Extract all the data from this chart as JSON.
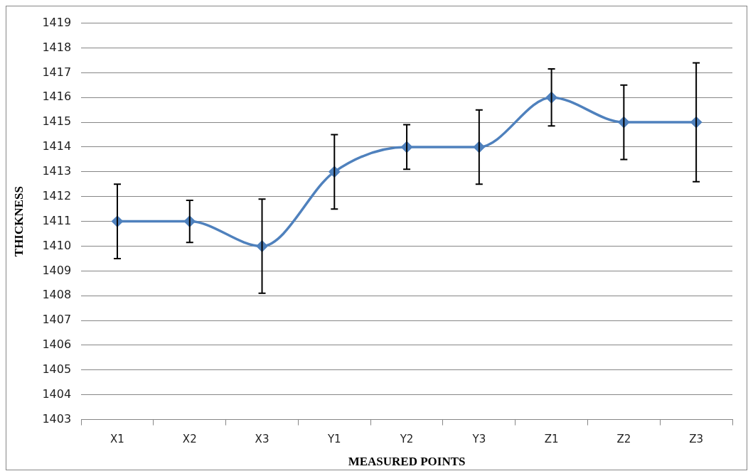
{
  "chart_data": {
    "type": "line",
    "xlabel": "MEASURED POINTS",
    "ylabel": "THICKNESS",
    "categories": [
      "X1",
      "X2",
      "X3",
      "Y1",
      "Y2",
      "Y3",
      "Z1",
      "Z2",
      "Z3"
    ],
    "series": [
      {
        "color": "#4f81bd",
        "values": [
          1411,
          1411,
          1410,
          1413,
          1414,
          1414,
          1416,
          1415,
          1415
        ],
        "errors": [
          1.5,
          0.85,
          1.9,
          1.5,
          0.9,
          1.5,
          1.15,
          1.5,
          2.4
        ]
      }
    ],
    "ylim": [
      1403,
      1419
    ],
    "yticks": [
      1403,
      1404,
      1405,
      1406,
      1407,
      1408,
      1409,
      1410,
      1411,
      1412,
      1413,
      1414,
      1415,
      1416,
      1417,
      1418,
      1419
    ],
    "grid": "y",
    "legend": false,
    "marker": "diamond",
    "line_style": "solid"
  }
}
